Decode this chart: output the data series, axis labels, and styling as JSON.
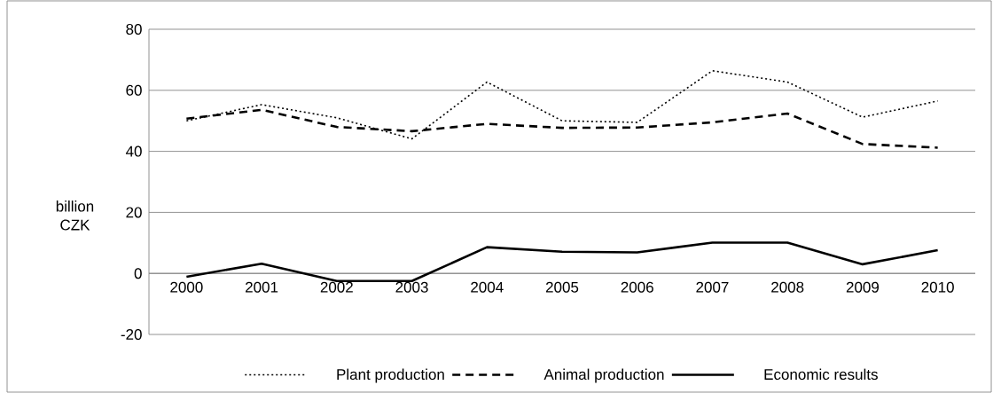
{
  "chart_data": {
    "type": "line",
    "ylabel": "billion CZK",
    "categories": [
      "2000",
      "2001",
      "2002",
      "2003",
      "2004",
      "2005",
      "2006",
      "2007",
      "2008",
      "2009",
      "2010"
    ],
    "series": [
      {
        "name": "Plant production",
        "color": "#000000",
        "line_style": "dotted",
        "values": [
          50,
          55.3,
          51,
          44.1,
          62.7,
          50,
          49.5,
          66.4,
          62.7,
          51.2,
          56.5
        ]
      },
      {
        "name": "Animal production",
        "color": "#000000",
        "line_style": "dashed",
        "values": [
          50.7,
          53.6,
          48,
          46.6,
          49,
          47.7,
          47.8,
          49.5,
          52.4,
          42.4,
          41.2
        ]
      },
      {
        "name": "Economic results",
        "color": "#000000",
        "line_style": "solid",
        "values": [
          -1.1,
          3.2,
          -2.5,
          -2.5,
          8.6,
          7.1,
          6.9,
          10.1,
          10.1,
          3,
          7.6
        ]
      }
    ],
    "ylim": [
      -20,
      80
    ],
    "yticks": [
      -20,
      0,
      20,
      40,
      60,
      80
    ],
    "grid": "y",
    "legend": "bottom",
    "marker": "none"
  }
}
